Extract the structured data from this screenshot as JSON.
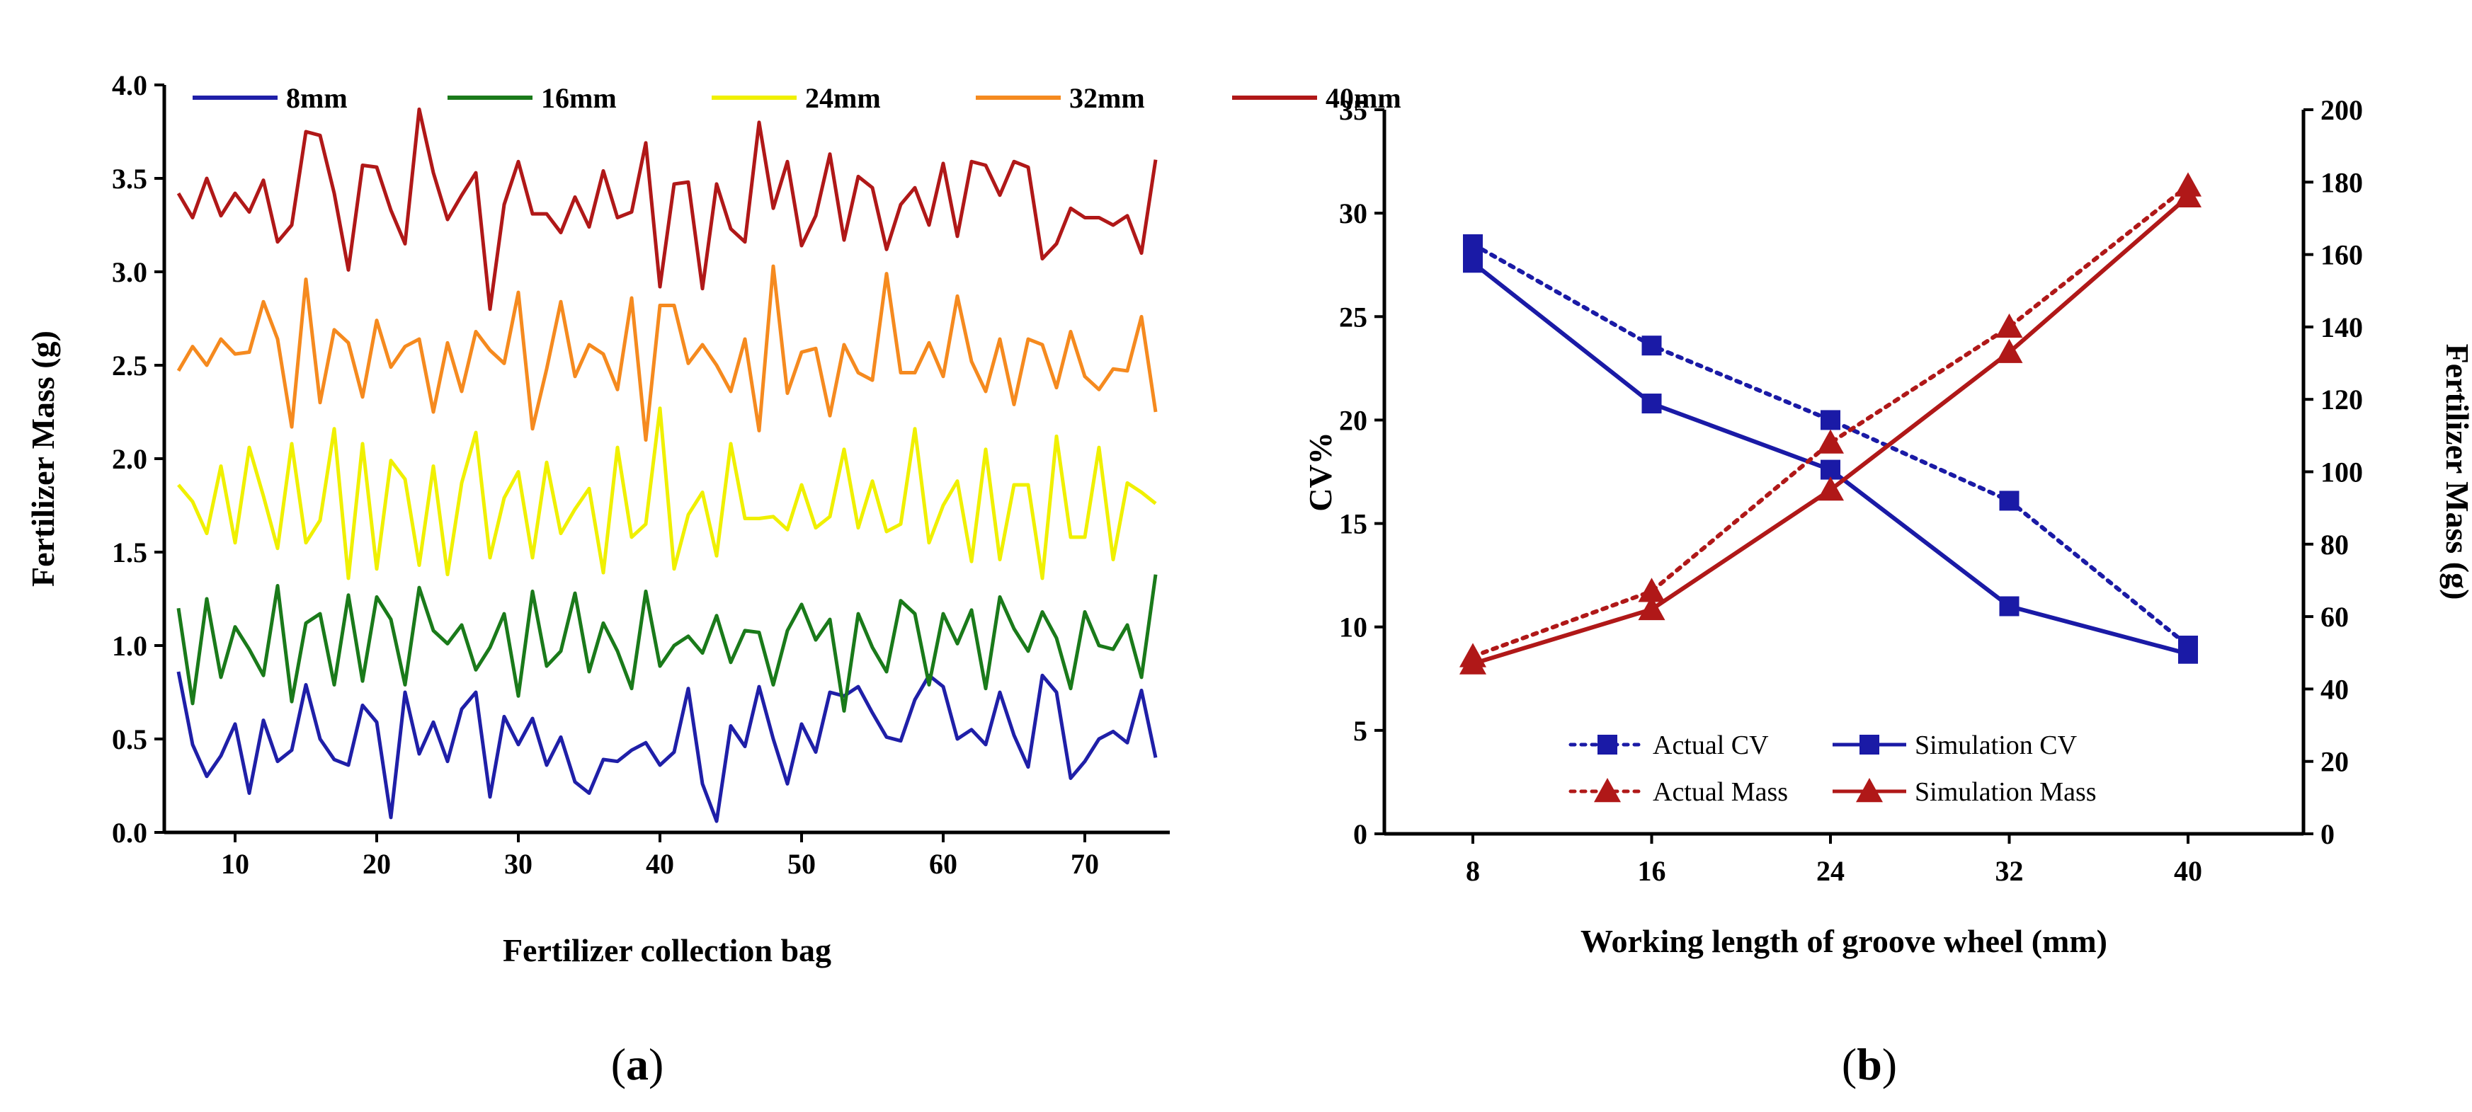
{
  "panels": {
    "a": {
      "label": "a"
    },
    "b": {
      "label": "b"
    }
  },
  "chart_data": [
    {
      "id": "a",
      "type": "line",
      "title": "",
      "xlabel": "Fertilizer collection bag",
      "ylabel": "Fertilizer Mass (g)",
      "xlim": [
        5,
        76
      ],
      "ylim": [
        0,
        4.0
      ],
      "xticks": [
        10,
        20,
        30,
        40,
        50,
        60,
        70
      ],
      "yticks": [
        0.0,
        0.5,
        1.0,
        1.5,
        2.0,
        2.5,
        3.0,
        3.5,
        4.0
      ],
      "ytick_labels": [
        "0.0",
        "0.5",
        "1.0",
        "1.5",
        "2.0",
        "2.5",
        "3.0",
        "3.5",
        "4.0"
      ],
      "x_start": 6,
      "legend_position": "top",
      "series": [
        {
          "name": "8mm",
          "color": "#1f1fa8",
          "values": [
            0.86,
            0.47,
            0.3,
            0.41,
            0.58,
            0.21,
            0.6,
            0.38,
            0.44,
            0.79,
            0.5,
            0.39,
            0.36,
            0.68,
            0.59,
            0.08,
            0.75,
            0.42,
            0.59,
            0.38,
            0.66,
            0.75,
            0.19,
            0.62,
            0.47,
            0.61,
            0.36,
            0.51,
            0.27,
            0.21,
            0.39,
            0.38,
            0.44,
            0.48,
            0.36,
            0.43,
            0.77,
            0.26,
            0.06,
            0.57,
            0.46,
            0.78,
            0.5,
            0.26,
            0.58,
            0.43,
            0.75,
            0.73,
            0.78,
            0.64,
            0.51,
            0.49,
            0.71,
            0.84,
            0.78,
            0.5,
            0.55,
            0.47,
            0.75,
            0.52,
            0.35,
            0.84,
            0.75,
            0.29,
            0.38,
            0.5,
            0.54,
            0.48,
            0.76,
            0.4
          ]
        },
        {
          "name": "16mm",
          "color": "#1a7a1a",
          "values": [
            1.2,
            0.69,
            1.25,
            0.83,
            1.1,
            0.98,
            0.84,
            1.32,
            0.7,
            1.12,
            1.17,
            0.79,
            1.27,
            0.81,
            1.26,
            1.14,
            0.79,
            1.31,
            1.08,
            1.01,
            1.11,
            0.87,
            0.99,
            1.17,
            0.73,
            1.29,
            0.89,
            0.97,
            1.28,
            0.86,
            1.12,
            0.97,
            0.77,
            1.29,
            0.89,
            1.0,
            1.05,
            0.96,
            1.16,
            0.91,
            1.08,
            1.07,
            0.79,
            1.08,
            1.22,
            1.03,
            1.14,
            0.65,
            1.17,
            0.99,
            0.86,
            1.24,
            1.17,
            0.79,
            1.17,
            1.01,
            1.19,
            0.77,
            1.26,
            1.09,
            0.97,
            1.18,
            1.04,
            0.77,
            1.18,
            1.0,
            0.98,
            1.11,
            0.83,
            1.38
          ]
        },
        {
          "name": "24mm",
          "color": "#f0f000",
          "values": [
            1.86,
            1.77,
            1.6,
            1.96,
            1.55,
            2.06,
            1.8,
            1.52,
            2.08,
            1.55,
            1.67,
            2.16,
            1.36,
            2.08,
            1.41,
            1.99,
            1.89,
            1.43,
            1.96,
            1.38,
            1.87,
            2.14,
            1.47,
            1.79,
            1.93,
            1.47,
            1.98,
            1.6,
            1.73,
            1.84,
            1.39,
            2.06,
            1.58,
            1.65,
            2.27,
            1.41,
            1.7,
            1.82,
            1.48,
            2.08,
            1.68,
            1.68,
            1.69,
            1.62,
            1.86,
            1.63,
            1.69,
            2.05,
            1.63,
            1.88,
            1.61,
            1.65,
            2.16,
            1.55,
            1.75,
            1.88,
            1.45,
            2.05,
            1.46,
            1.86,
            1.86,
            1.36,
            2.12,
            1.58,
            1.58,
            2.06,
            1.46,
            1.87,
            1.82,
            1.76
          ]
        },
        {
          "name": "32mm",
          "color": "#f58a1f",
          "values": [
            2.47,
            2.6,
            2.5,
            2.64,
            2.56,
            2.57,
            2.84,
            2.64,
            2.17,
            2.96,
            2.3,
            2.69,
            2.62,
            2.33,
            2.74,
            2.49,
            2.6,
            2.64,
            2.25,
            2.62,
            2.36,
            2.68,
            2.58,
            2.51,
            2.89,
            2.16,
            2.48,
            2.84,
            2.44,
            2.61,
            2.56,
            2.37,
            2.86,
            2.1,
            2.82,
            2.82,
            2.51,
            2.61,
            2.5,
            2.36,
            2.64,
            2.15,
            3.03,
            2.35,
            2.57,
            2.59,
            2.23,
            2.61,
            2.46,
            2.42,
            2.99,
            2.46,
            2.46,
            2.62,
            2.44,
            2.87,
            2.52,
            2.36,
            2.64,
            2.29,
            2.64,
            2.61,
            2.38,
            2.68,
            2.44,
            2.37,
            2.48,
            2.47,
            2.76,
            2.25
          ]
        },
        {
          "name": "40mm",
          "color": "#b01818",
          "values": [
            3.42,
            3.29,
            3.5,
            3.3,
            3.42,
            3.32,
            3.49,
            3.16,
            3.25,
            3.75,
            3.73,
            3.42,
            3.01,
            3.57,
            3.56,
            3.33,
            3.15,
            3.87,
            3.53,
            3.28,
            3.41,
            3.53,
            2.8,
            3.36,
            3.59,
            3.31,
            3.31,
            3.21,
            3.4,
            3.24,
            3.54,
            3.29,
            3.32,
            3.69,
            2.92,
            3.47,
            3.48,
            2.91,
            3.47,
            3.23,
            3.16,
            3.8,
            3.34,
            3.59,
            3.14,
            3.3,
            3.63,
            3.17,
            3.51,
            3.45,
            3.12,
            3.36,
            3.45,
            3.25,
            3.58,
            3.19,
            3.59,
            3.57,
            3.41,
            3.59,
            3.56,
            3.07,
            3.15,
            3.34,
            3.29,
            3.29,
            3.25,
            3.3,
            3.1,
            3.6
          ]
        }
      ]
    },
    {
      "id": "b",
      "type": "line",
      "title": "",
      "xlabel": "Working length of groove wheel  (mm)",
      "ylabel": "CV%",
      "ylabel_right": "Fertilizer Mass (g)",
      "categories": [
        "8",
        "16",
        "24",
        "32",
        "40"
      ],
      "ylim": [
        0,
        35
      ],
      "yticks": [
        0,
        5,
        10,
        15,
        20,
        25,
        30,
        35
      ],
      "ylim_right": [
        0,
        200
      ],
      "yticks_right": [
        0,
        20,
        40,
        60,
        80,
        100,
        120,
        140,
        160,
        180,
        200
      ],
      "legend_position": "bottom-center",
      "series": [
        {
          "name": "Actual CV",
          "axis": "left",
          "style": "dotted",
          "marker": "square",
          "color": "#1a1aa6",
          "values": [
            28.5,
            23.6,
            20.0,
            16.1,
            9.1
          ]
        },
        {
          "name": "Simulation CV",
          "axis": "left",
          "style": "solid",
          "marker": "square",
          "color": "#1a1aa6",
          "values": [
            27.6,
            20.8,
            17.6,
            11.0,
            8.7
          ]
        },
        {
          "name": "Actual Mass",
          "axis": "right",
          "style": "dotted",
          "marker": "triangle",
          "color": "#b01818",
          "values": [
            49,
            67,
            108,
            140,
            179
          ]
        },
        {
          "name": "Simulation Mass",
          "axis": "right",
          "style": "solid",
          "marker": "triangle",
          "color": "#b01818",
          "values": [
            47,
            62,
            95,
            133,
            176
          ]
        }
      ]
    }
  ]
}
